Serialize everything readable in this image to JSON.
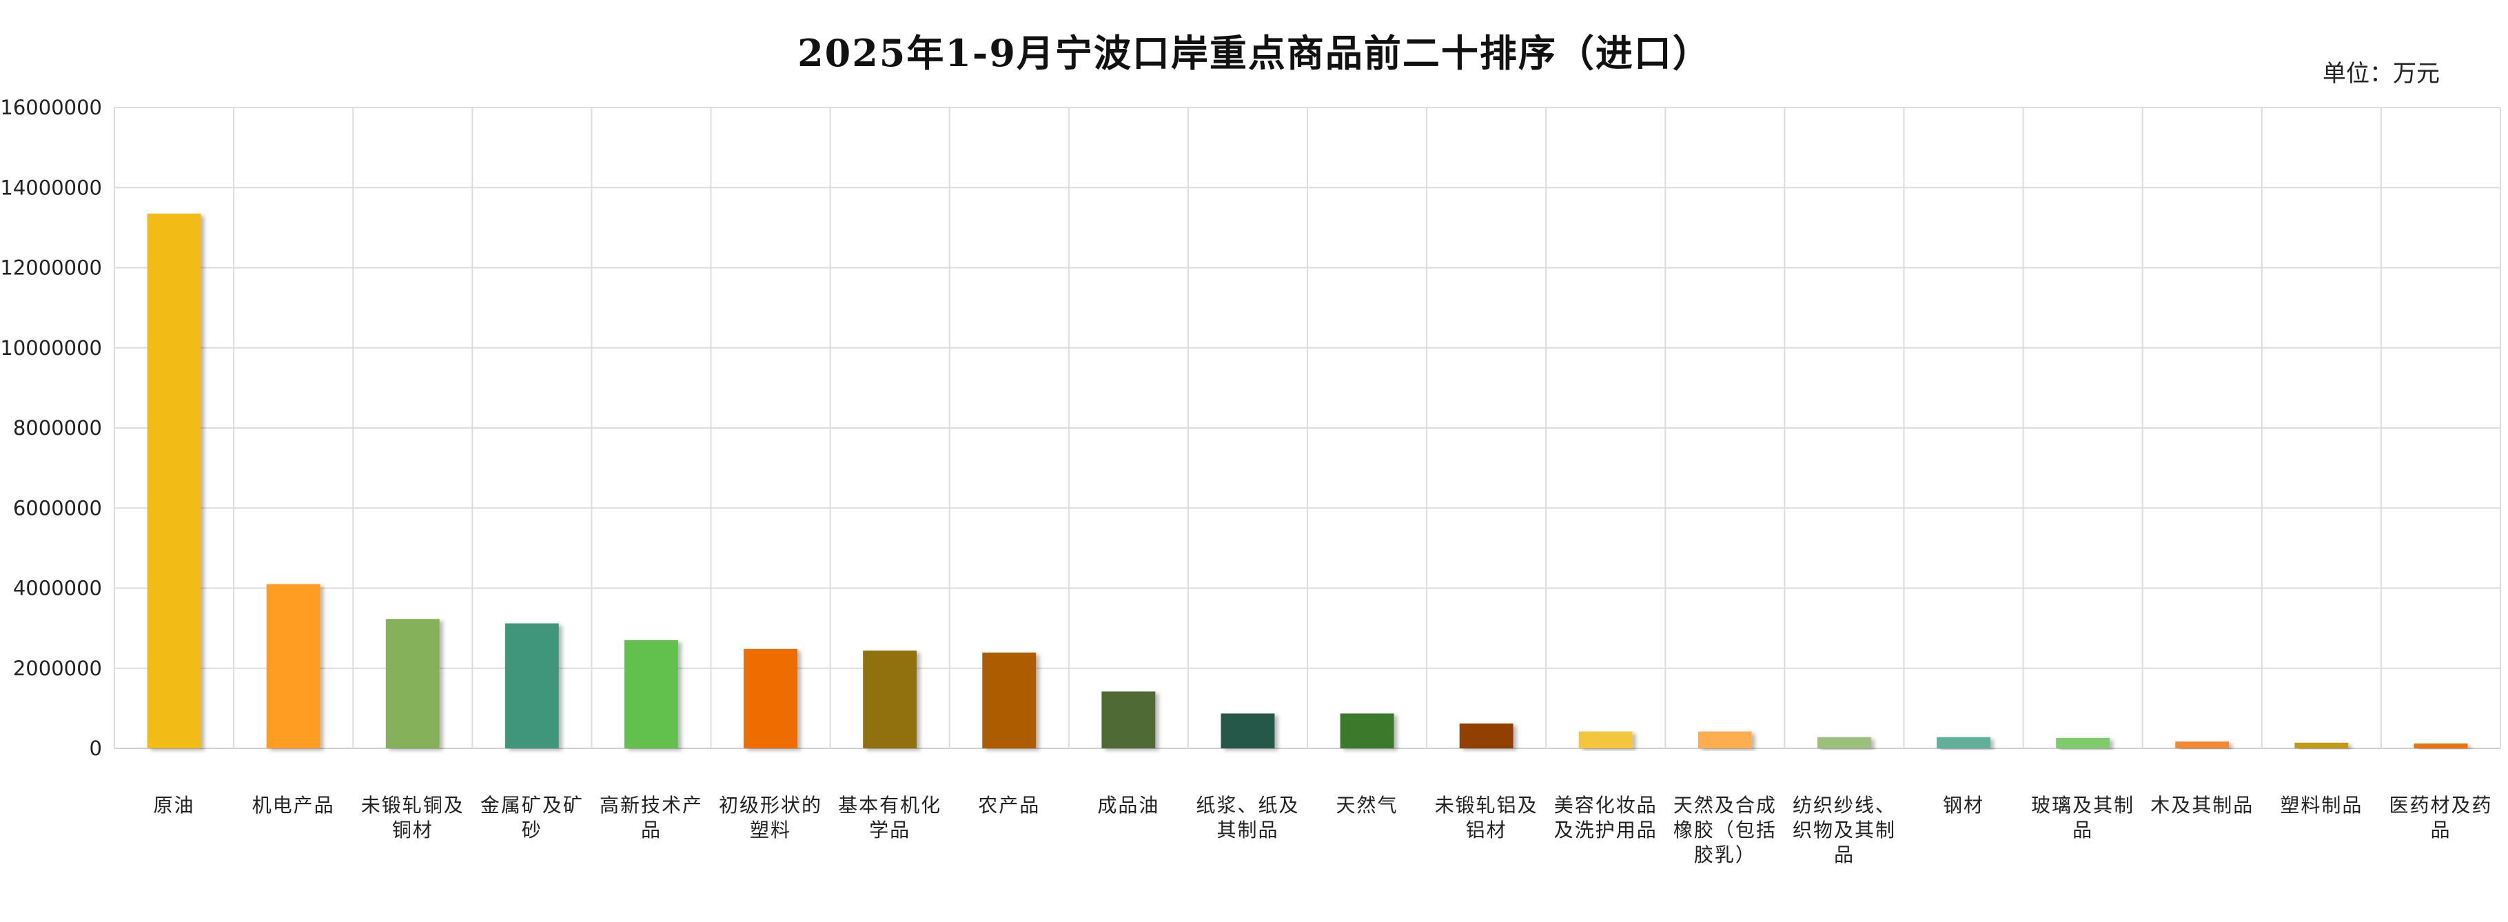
{
  "chart_data": {
    "type": "bar",
    "title": "2025年1-9月宁波口岸重点商品前二十排序（进口）",
    "unit_label": "单位：万元",
    "ylim": [
      0,
      16000000
    ],
    "y_ticks": [
      0,
      2000000,
      4000000,
      6000000,
      8000000,
      10000000,
      12000000,
      14000000,
      16000000
    ],
    "y_tick_labels": [
      "0",
      "2000000",
      "4000000",
      "6000000",
      "8000000",
      "10000000",
      "12000000",
      "14000000",
      "16000000"
    ],
    "grid": true,
    "legend": "none",
    "categories": [
      [
        "原油"
      ],
      [
        "机电产品"
      ],
      [
        "未锻轧铜及",
        "铜材"
      ],
      [
        "金属矿及矿",
        "砂"
      ],
      [
        "高新技术产",
        "品"
      ],
      [
        "初级形状的",
        "塑料"
      ],
      [
        "基本有机化",
        "学品"
      ],
      [
        "农产品"
      ],
      [
        "成品油"
      ],
      [
        "纸浆、纸及",
        "其制品"
      ],
      [
        "天然气"
      ],
      [
        "未锻轧铝及",
        "铝材"
      ],
      [
        "美容化妆品",
        "及洗护用品"
      ],
      [
        "天然及合成",
        "橡胶（包括",
        "胶乳）"
      ],
      [
        "纺织纱线、",
        "织物及其制",
        "品"
      ],
      [
        "钢材"
      ],
      [
        "玻璃及其制",
        "品"
      ],
      [
        "木及其制品"
      ],
      [
        "塑料制品"
      ],
      [
        "医药材及药",
        "品"
      ]
    ],
    "values": [
      13350000,
      4100000,
      3230000,
      3120000,
      2700000,
      2480000,
      2440000,
      2390000,
      1420000,
      870000,
      870000,
      620000,
      420000,
      420000,
      280000,
      280000,
      260000,
      170000,
      140000,
      120000
    ],
    "colors": [
      "#F2BB13",
      "#FF9C22",
      "#85B15A",
      "#41967A",
      "#62C14E",
      "#EE6C04",
      "#917108",
      "#AD5C03",
      "#4F6B35",
      "#265948",
      "#3A7A2C",
      "#914102",
      "#F4C63E",
      "#FFAE4F",
      "#9CC07B",
      "#5FAF99",
      "#7ECB69",
      "#F38A30",
      "#C19A12",
      "#E87210"
    ]
  }
}
